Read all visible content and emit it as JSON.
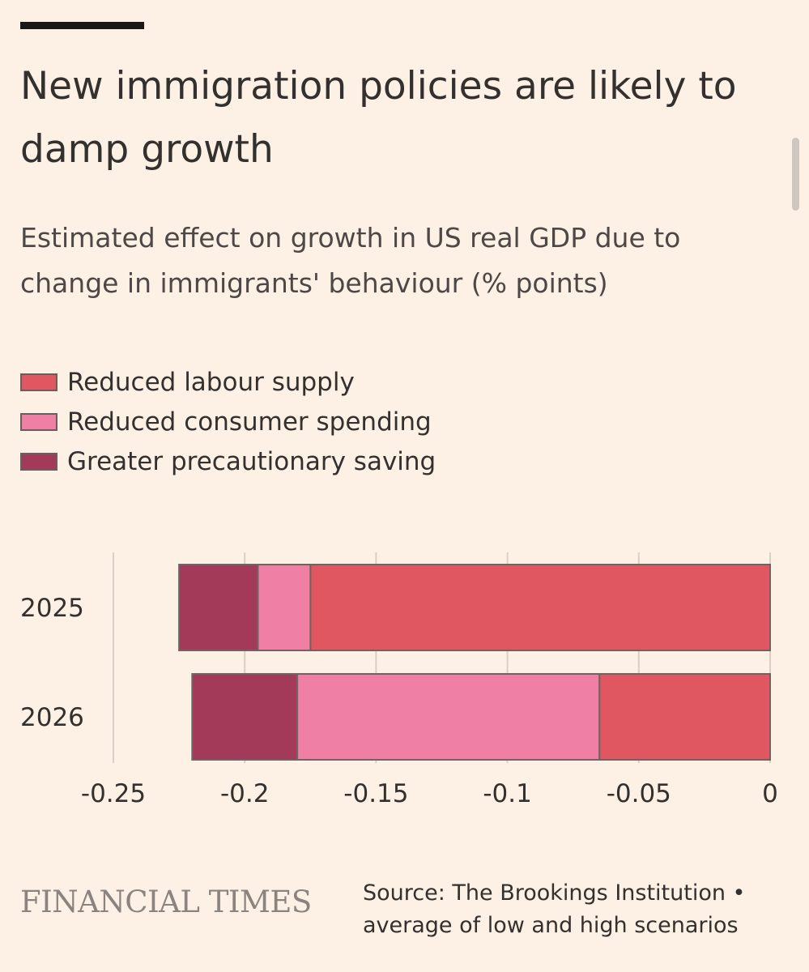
{
  "title": "New immigration policies are likely to damp growth",
  "subtitle": "Estimated effect on growth in US real GDP due to change in immigrants' behaviour (% points)",
  "colors": {
    "labour": "#e05762",
    "consumer": "#ef7fa5",
    "saving": "#a33a5a",
    "background": "#fdf1e6"
  },
  "chart_data": {
    "type": "bar",
    "orientation": "horizontal",
    "stacked": true,
    "categories": [
      "2025",
      "2026"
    ],
    "series": [
      {
        "name": "Reduced labour supply",
        "color": "#e05762",
        "values": [
          -0.175,
          -0.065
        ]
      },
      {
        "name": "Reduced consumer spending",
        "color": "#ef7fa5",
        "values": [
          -0.02,
          -0.115
        ]
      },
      {
        "name": "Greater precautionary saving",
        "color": "#a33a5a",
        "values": [
          -0.03,
          -0.04
        ]
      }
    ],
    "xlim": [
      -0.25,
      0
    ],
    "xticks": [
      -0.25,
      -0.2,
      -0.15,
      -0.1,
      -0.05,
      0
    ],
    "xtick_labels": [
      "-0.25",
      "-0.2",
      "-0.15",
      "-0.1",
      "-0.05",
      "0"
    ],
    "grid": "vertical",
    "legend_position": "top-left"
  },
  "footer": {
    "logo": "FINANCIAL TIMES",
    "source_line1": "Source: The Brookings Institution •",
    "source_line2": "average of low and high scenarios"
  }
}
